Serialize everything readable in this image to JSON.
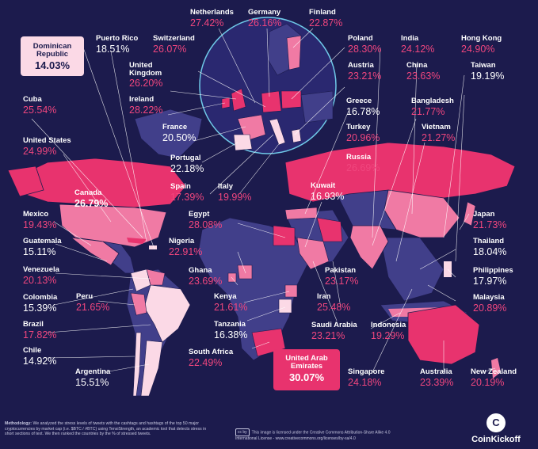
{
  "map_data": {
    "metric": "stress level of tweets",
    "unit": "%",
    "countries": [
      {
        "name": "Netherlands",
        "value": "27.42%"
      },
      {
        "name": "Germany",
        "value": "26.16%"
      },
      {
        "name": "Finland",
        "value": "22.87%"
      },
      {
        "name": "Dominican Republic",
        "value": "14.03%"
      },
      {
        "name": "Puerto Rico",
        "value": "18.51%"
      },
      {
        "name": "Switzerland",
        "value": "26.07%"
      },
      {
        "name": "Poland",
        "value": "28.30%"
      },
      {
        "name": "India",
        "value": "24.12%"
      },
      {
        "name": "Hong Kong",
        "value": "24.90%"
      },
      {
        "name": "United Kingdom",
        "value": "26.20%"
      },
      {
        "name": "Austria",
        "value": "23.21%"
      },
      {
        "name": "China",
        "value": "23.63%"
      },
      {
        "name": "Taiwan",
        "value": "19.19%"
      },
      {
        "name": "Ireland",
        "value": "28.22%"
      },
      {
        "name": "Greece",
        "value": "16.78%"
      },
      {
        "name": "Bangladesh",
        "value": "21.77%"
      },
      {
        "name": "Cuba",
        "value": "25.54%"
      },
      {
        "name": "France",
        "value": "20.50%"
      },
      {
        "name": "Turkey",
        "value": "20.96%"
      },
      {
        "name": "Vietnam",
        "value": "21.27%"
      },
      {
        "name": "United States",
        "value": "24.99%"
      },
      {
        "name": "Portugal",
        "value": "22.18%"
      },
      {
        "name": "Russia",
        "value": "26.69%"
      },
      {
        "name": "Spain",
        "value": "17.39%"
      },
      {
        "name": "Italy",
        "value": "19.99%"
      },
      {
        "name": "Kuwait",
        "value": "16.93%"
      },
      {
        "name": "Canada",
        "value": "26.79%"
      },
      {
        "name": "Mexico",
        "value": "19.43%"
      },
      {
        "name": "Egypt",
        "value": "28.08%"
      },
      {
        "name": "Japan",
        "value": "21.73%"
      },
      {
        "name": "Guatemala",
        "value": "15.11%"
      },
      {
        "name": "Nigeria",
        "value": "22.91%"
      },
      {
        "name": "Thailand",
        "value": "18.04%"
      },
      {
        "name": "Venezuela",
        "value": "20.13%"
      },
      {
        "name": "Ghana",
        "value": "23.69%"
      },
      {
        "name": "Pakistan",
        "value": "23.17%"
      },
      {
        "name": "Philippines",
        "value": "17.97%"
      },
      {
        "name": "Colombia",
        "value": "15.39%"
      },
      {
        "name": "Peru",
        "value": "21.65%"
      },
      {
        "name": "Kenya",
        "value": "21.61%"
      },
      {
        "name": "Iran",
        "value": "25.48%"
      },
      {
        "name": "Malaysia",
        "value": "20.89%"
      },
      {
        "name": "Brazil",
        "value": "17.82%"
      },
      {
        "name": "Tanzania",
        "value": "16.38%"
      },
      {
        "name": "Saudi Arabia",
        "value": "23.21%"
      },
      {
        "name": "Indonesia",
        "value": "19.29%"
      },
      {
        "name": "Chile",
        "value": "14.92%"
      },
      {
        "name": "South Africa",
        "value": "22.49%"
      },
      {
        "name": "United Arab Emirates",
        "value": "30.07%"
      },
      {
        "name": "Argentina",
        "value": "15.51%"
      },
      {
        "name": "Singapore",
        "value": "24.18%"
      },
      {
        "name": "Australia",
        "value": "23.39%"
      },
      {
        "name": "New Zealand",
        "value": "20.19%"
      }
    ],
    "highlight": {
      "lowest": "Dominican Republic",
      "highest": "United Arab Emirates"
    },
    "inset": "Europe"
  },
  "labels": {
    "dominican_name": "Dominican\nRepublic",
    "uae_name": "United Arab\nEmirates",
    "uk_name": "United\nKingdom"
  },
  "footer": {
    "methodology_title": "Methodology:",
    "methodology_text": "We analyzed the stress levels of tweets with the cashtags and hashtags of the top 50 major cryptocurrencies by market cap (i.e. $BTC / #BTC) using TensiStrength, an academic tool that detects stress in short sections of text. We then ranked the countries by the % of stressed tweets.",
    "license_badge": "cc by",
    "license_text": "This image is licensed under the Creative Commons Attribution-Share Alike 4.0 International License - www.creativecommons.org/licenses/by-sa/4.0",
    "brand": "CoinKickoff",
    "brand_mark": "C"
  },
  "colors": {
    "background": "#1c1b4d",
    "land_base": "#413f8a",
    "high_stress": "#e8336e",
    "mid_stress": "#f07aa4",
    "low_stress": "#fbd9e6",
    "inset_ring": "#6fc9e8",
    "label_value": "#f0467e"
  }
}
